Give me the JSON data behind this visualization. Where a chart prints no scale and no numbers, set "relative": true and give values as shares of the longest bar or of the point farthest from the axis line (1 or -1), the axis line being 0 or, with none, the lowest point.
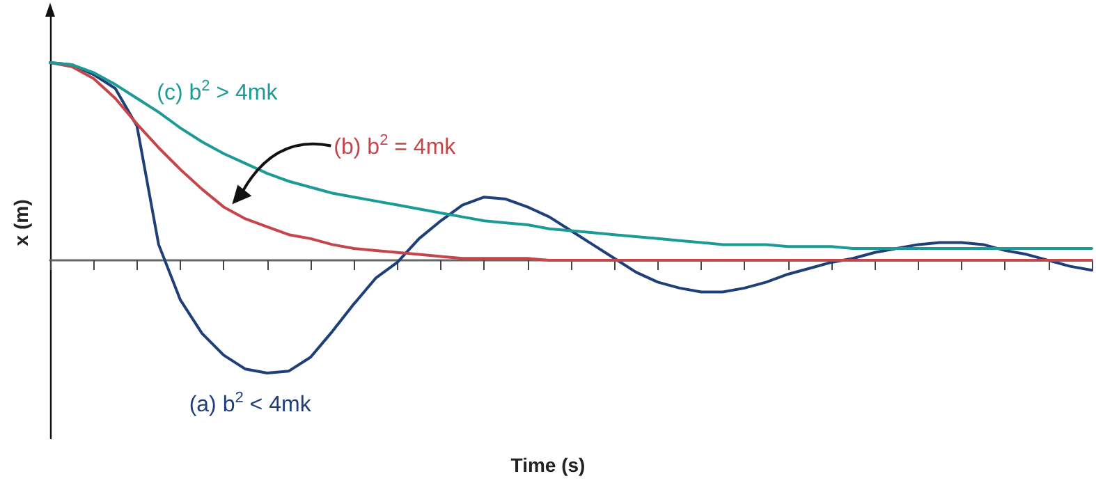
{
  "chart_data": {
    "type": "line",
    "relative": true,
    "xlabel": "Time (s)",
    "ylabel": "x (m)",
    "marker": "none",
    "grid": false,
    "categories": [
      null,
      null,
      null,
      null,
      null,
      null,
      null,
      null,
      null,
      null,
      null,
      null,
      null,
      null,
      null,
      null,
      null,
      null,
      null,
      null,
      null,
      null,
      null,
      null,
      null,
      null,
      null,
      null,
      null,
      null,
      null,
      null,
      null,
      null,
      null,
      null,
      null,
      null,
      null,
      null,
      null,
      null,
      null,
      null,
      null,
      null,
      null,
      null,
      null
    ],
    "series": [
      {
        "name": "(a) b$^{2}$ < 4mk",
        "color": "#1f3f78",
        "values": [
          1,
          0.99,
          0.94,
          0.87,
          0.68,
          0.08,
          -0.2,
          -0.37,
          -0.48,
          -0.55,
          -0.57,
          -0.56,
          -0.49,
          -0.36,
          -0.22,
          -0.09,
          -0.01,
          0.11,
          0.2,
          0.28,
          0.32,
          0.31,
          0.27,
          0.22,
          0.15,
          0.08,
          0.01,
          -0.06,
          -0.11,
          -0.14,
          -0.16,
          -0.16,
          -0.14,
          -0.11,
          -0.07,
          -0.04,
          -0.01,
          0.01,
          0.04,
          0.06,
          0.08,
          0.09,
          0.09,
          0.08,
          0.05,
          0.03,
          0,
          -0.03,
          -0.05
        ]
      },
      {
        "name": "(b) b$^{2}$ = 4mk",
        "color": "#c4464a",
        "values": [
          1,
          0.98,
          0.92,
          0.82,
          0.69,
          0.57,
          0.46,
          0.36,
          0.27,
          0.21,
          0.17,
          0.13,
          0.11,
          0.08,
          0.06,
          0.05,
          0.04,
          0.03,
          0.02,
          0.01,
          0.01,
          0.01,
          0.01,
          0,
          0,
          0,
          0,
          0,
          0,
          0,
          0,
          0,
          0,
          0,
          0,
          0,
          0,
          0,
          0,
          0,
          0,
          0,
          0,
          0,
          0,
          0,
          0,
          0,
          0
        ]
      },
      {
        "name": "(c) b$^{2}$ > 4mk",
        "color": "#1c9a96",
        "values": [
          1,
          0.99,
          0.95,
          0.89,
          0.82,
          0.75,
          0.67,
          0.6,
          0.54,
          0.49,
          0.44,
          0.4,
          0.37,
          0.34,
          0.32,
          0.3,
          0.28,
          0.26,
          0.24,
          0.22,
          0.2,
          0.19,
          0.18,
          0.16,
          0.15,
          0.14,
          0.13,
          0.12,
          0.11,
          0.1,
          0.09,
          0.08,
          0.08,
          0.08,
          0.07,
          0.07,
          0.07,
          0.06,
          0.06,
          0.06,
          0.06,
          0.06,
          0.06,
          0.06,
          0.06,
          0.06,
          0.06,
          0.06,
          0.06
        ]
      }
    ]
  }
}
